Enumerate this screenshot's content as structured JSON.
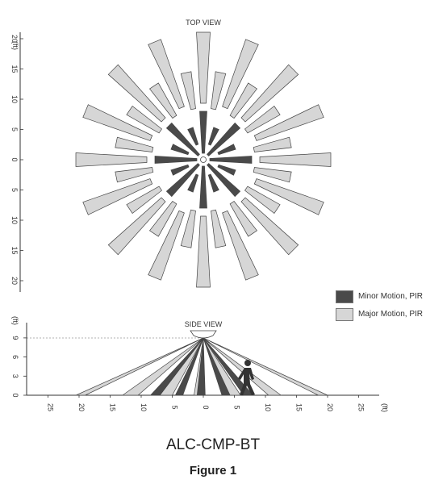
{
  "top_view": {
    "title": "TOP VIEW",
    "unit": "(ft)",
    "ticks": [
      "20",
      "15",
      "10",
      "5",
      "0",
      "5",
      "10",
      "15",
      "20"
    ]
  },
  "side_view": {
    "title": "SIDE VIEW",
    "unit_y": "(ft)",
    "unit_x": "(ft)",
    "y_ticks": [
      "9",
      "6",
      "3",
      "0"
    ],
    "x_ticks": [
      "25",
      "20",
      "15",
      "10",
      "5",
      "0",
      "5",
      "10",
      "15",
      "20",
      "25"
    ]
  },
  "legend": {
    "minor_label": "Minor Motion, PIR",
    "major_label": "Major Motion, PIR",
    "minor_color": "#4a4a4a",
    "major_color": "#d6d6d6"
  },
  "model": "ALC-CMP-BT",
  "figure": "Figure 1"
}
